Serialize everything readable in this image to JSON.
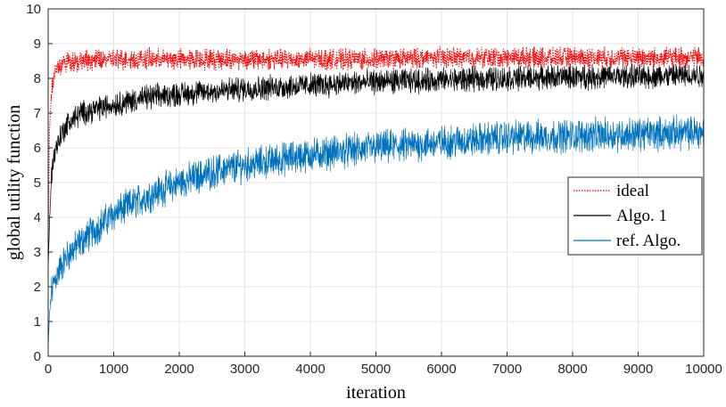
{
  "chart_data": {
    "type": "line",
    "xlabel": "iteration",
    "ylabel": "global utility function",
    "xlim": [
      0,
      10000
    ],
    "ylim": [
      0,
      10
    ],
    "xticks": [
      0,
      1000,
      2000,
      3000,
      4000,
      5000,
      6000,
      7000,
      8000,
      9000,
      10000
    ],
    "yticks": [
      0,
      1,
      2,
      3,
      4,
      5,
      6,
      7,
      8,
      9,
      10
    ],
    "grid": true,
    "legend_position": "right",
    "series": [
      {
        "name": "ideal",
        "color": "#ff0000",
        "style": "dotted",
        "x": [
          0,
          20,
          50,
          100,
          200,
          300,
          500,
          1000,
          2000,
          3000,
          4000,
          5000,
          6000,
          7000,
          8000,
          9000,
          10000
        ],
        "y": [
          3.0,
          6.5,
          7.6,
          8.2,
          8.4,
          8.5,
          8.5,
          8.55,
          8.55,
          8.55,
          8.55,
          8.55,
          8.6,
          8.6,
          8.6,
          8.6,
          8.6
        ],
        "noise": 0.45
      },
      {
        "name": "Algo. 1",
        "color": "#000000",
        "style": "solid",
        "x": [
          0,
          20,
          50,
          100,
          200,
          300,
          500,
          1000,
          1500,
          2000,
          3000,
          4000,
          5000,
          6000,
          7000,
          8000,
          9000,
          10000
        ],
        "y": [
          2.5,
          3.8,
          5.2,
          5.9,
          6.4,
          6.7,
          7.0,
          7.25,
          7.45,
          7.55,
          7.7,
          7.8,
          7.9,
          7.95,
          8.0,
          8.05,
          8.05,
          8.1
        ],
        "noise": 0.55
      },
      {
        "name": "ref. Algo.",
        "color": "#0072bd",
        "style": "solid",
        "x": [
          0,
          20,
          50,
          100,
          200,
          300,
          500,
          1000,
          1500,
          2000,
          2500,
          3000,
          4000,
          5000,
          6000,
          7000,
          8000,
          9000,
          10000
        ],
        "y": [
          0.2,
          1.2,
          1.8,
          2.2,
          2.6,
          2.9,
          3.3,
          4.1,
          4.6,
          5.0,
          5.3,
          5.5,
          5.8,
          6.0,
          6.15,
          6.3,
          6.35,
          6.4,
          6.45
        ],
        "noise": 0.75
      }
    ]
  }
}
